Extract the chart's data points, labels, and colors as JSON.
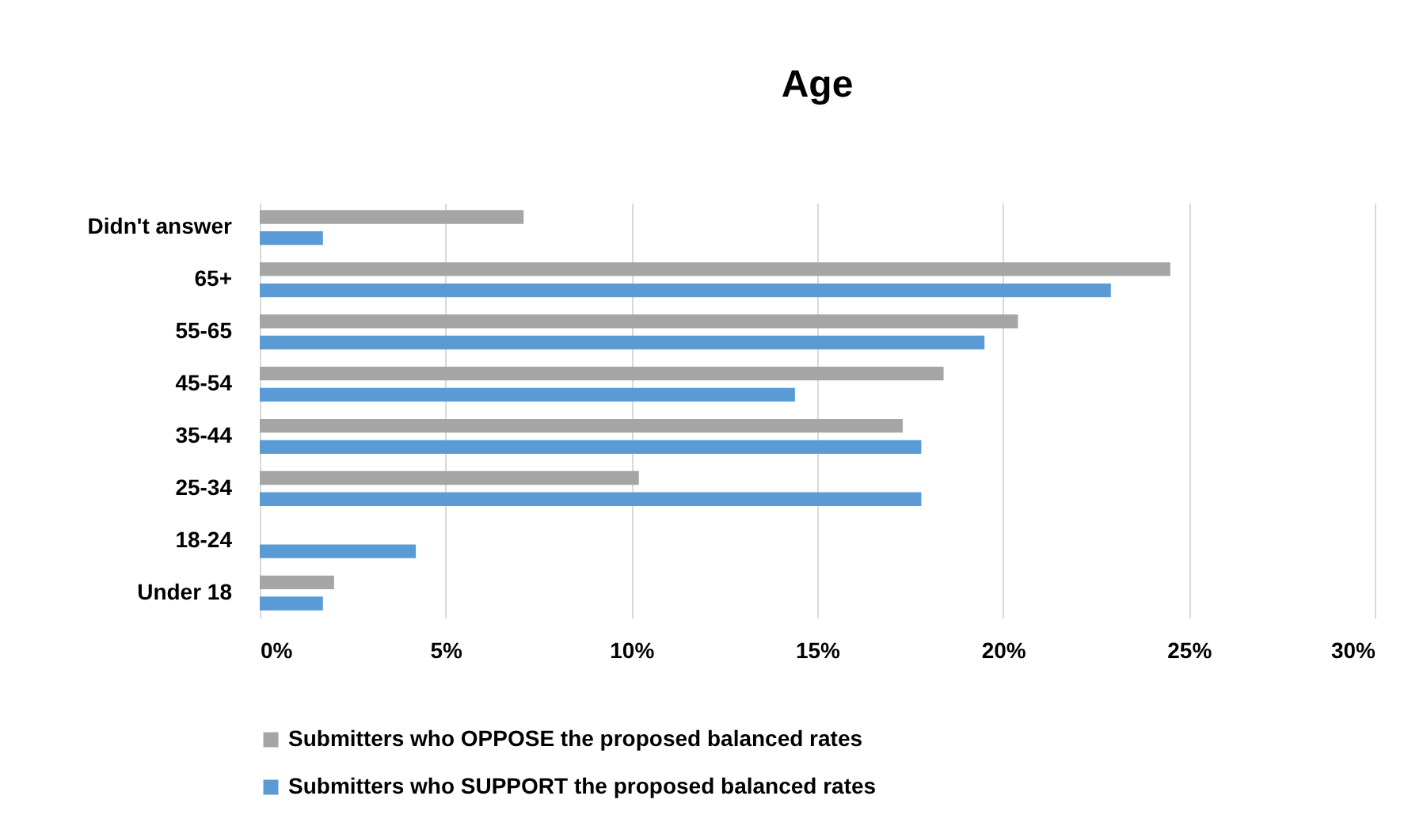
{
  "chart_data": {
    "type": "bar",
    "orientation": "horizontal",
    "title": "Age",
    "categories": [
      "Didn't answer",
      "65+",
      "55-65",
      "45-54",
      "35-44",
      "25-34",
      "18-24",
      "Under 18"
    ],
    "series": [
      {
        "name": "Submitters who OPPOSE the proposed balanced rates",
        "color": "#a5a5a5",
        "values": [
          7.1,
          24.5,
          20.4,
          18.4,
          17.3,
          10.2,
          0,
          2.0
        ]
      },
      {
        "name": "Submitters who SUPPORT the proposed balanced rates",
        "color": "#5b9bd5",
        "values": [
          1.7,
          22.9,
          19.5,
          14.4,
          17.8,
          17.8,
          4.2,
          1.7
        ]
      }
    ],
    "xlim": [
      0,
      30
    ],
    "xticks": [
      {
        "value": 0,
        "label": "0%"
      },
      {
        "value": 5,
        "label": "5%"
      },
      {
        "value": 10,
        "label": "10%"
      },
      {
        "value": 15,
        "label": "15%"
      },
      {
        "value": 20,
        "label": "20%"
      },
      {
        "value": 25,
        "label": "25%"
      },
      {
        "value": 30,
        "label": "30%"
      }
    ],
    "grid": "x",
    "legend": "bottom"
  }
}
